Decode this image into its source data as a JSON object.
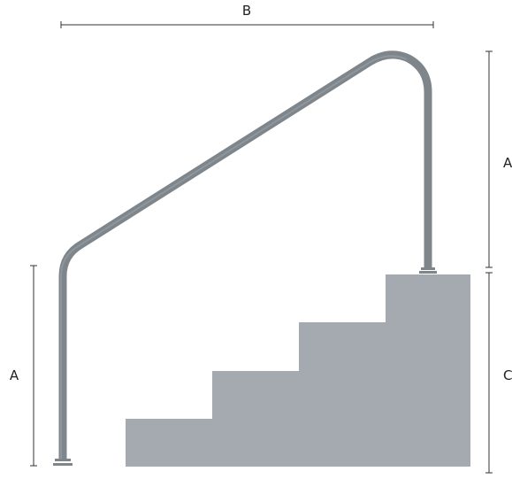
{
  "labels": {
    "width_b": "B",
    "rail_height_left": "A",
    "rail_height_right": "A",
    "stair_height": "C"
  },
  "colors": {
    "rail": "#7e868c",
    "rail_highlight": "#9aa2a8",
    "stairs": "#a4aab0",
    "dimension": "#333333",
    "background": "#ffffff"
  }
}
